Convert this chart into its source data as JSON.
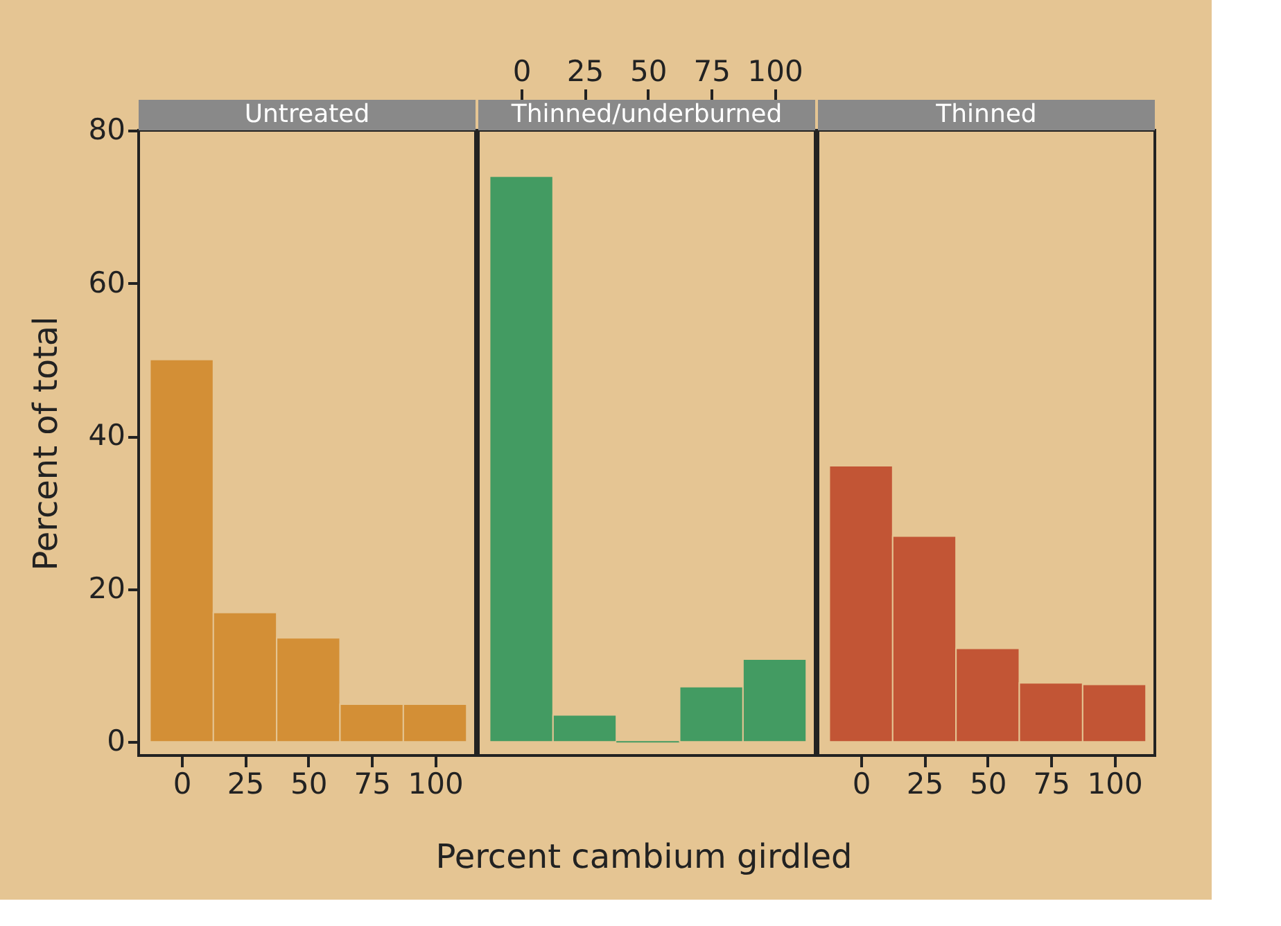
{
  "chart_data": [
    {
      "type": "histogram",
      "title": "Untreated",
      "ylabel": "Percent of total",
      "bins": [
        -12.5,
        12.5,
        37.5,
        62.5,
        87.5,
        112.5
      ],
      "values": [
        50.0,
        16.9,
        13.6,
        4.9,
        4.9
      ],
      "color": "#d38f36",
      "xlim": [
        -17,
        116
      ],
      "xticks": [
        0,
        25,
        50,
        75,
        100
      ],
      "ylim": [
        -1.8,
        80
      ],
      "yticks": [
        0,
        20,
        40,
        60,
        80
      ],
      "grid": false
    },
    {
      "type": "histogram",
      "title": "Thinned/underburned",
      "xlabel": "Percent cambium girdled",
      "bins": [
        -12.5,
        12.5,
        37.5,
        62.5,
        87.5,
        112.5
      ],
      "values": [
        74.0,
        3.5,
        0,
        7.2,
        10.8
      ],
      "color": "#439b62",
      "xlim": [
        -17,
        116
      ],
      "xticks": [
        0,
        25,
        50,
        75,
        100
      ],
      "ylim": [
        -1.8,
        80
      ],
      "tick_labels": "x2",
      "grid": false
    },
    {
      "type": "histogram",
      "title": "Thinned",
      "bins": [
        -12.5,
        12.5,
        37.5,
        62.5,
        87.5,
        112.5
      ],
      "values": [
        36.1,
        26.9,
        12.2,
        7.7,
        7.5
      ],
      "color": "#c25535",
      "xlim": [
        -17,
        116
      ],
      "xticks": [
        0,
        25,
        50,
        75,
        100
      ],
      "ylim": [
        -1.8,
        80
      ],
      "tick_labels": "x",
      "grid": false
    }
  ]
}
